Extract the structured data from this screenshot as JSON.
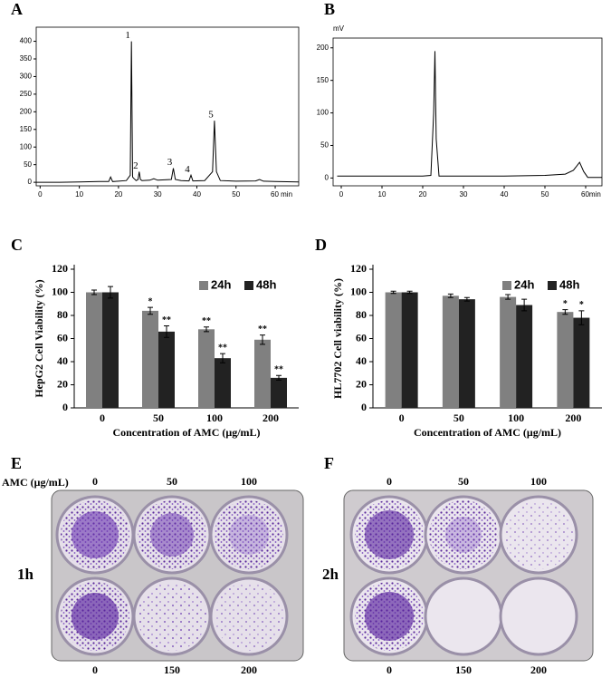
{
  "chart_data": [
    {
      "type": "line",
      "panel_label": "A",
      "color": "#000000",
      "x": [
        -1,
        5,
        10,
        15,
        17.5,
        18,
        18.5,
        20,
        22,
        23,
        23.3,
        23.6,
        24,
        24.5,
        25,
        25.3,
        25.6,
        26,
        28,
        29,
        30,
        33.5,
        34,
        34.5,
        36,
        38,
        38.5,
        39,
        42,
        44,
        44.5,
        45,
        46,
        50,
        55,
        56,
        57,
        60,
        66
      ],
      "values": [
        0,
        0,
        1,
        2,
        2,
        15,
        2,
        3,
        5,
        20,
        400,
        15,
        10,
        5,
        8,
        30,
        8,
        5,
        6,
        10,
        6,
        8,
        40,
        8,
        5,
        4,
        20,
        4,
        5,
        30,
        175,
        30,
        5,
        3,
        4,
        8,
        3,
        2,
        1
      ],
      "point_labels": [
        null,
        null,
        null,
        null,
        null,
        null,
        null,
        null,
        null,
        null,
        "1",
        null,
        null,
        null,
        null,
        "2",
        null,
        null,
        null,
        null,
        null,
        null,
        "3",
        null,
        null,
        null,
        "4",
        null,
        null,
        null,
        "5",
        null,
        null,
        null,
        null,
        null,
        null,
        null,
        null
      ],
      "xlim": [
        -1,
        66
      ],
      "ylim": [
        -10,
        440
      ],
      "xticks": [
        0,
        10,
        20,
        30,
        40,
        50,
        {
          "value": 60,
          "label": "60 min"
        }
      ],
      "yticks": [
        0,
        50,
        100,
        150,
        200,
        250,
        300,
        350,
        400
      ]
    },
    {
      "type": "line",
      "panel_label": "B",
      "color": "#000000",
      "y_label": "mV",
      "x": [
        -1,
        3,
        5,
        10,
        15,
        20,
        22,
        22.7,
        23,
        23.3,
        24,
        25,
        30,
        40,
        50,
        55,
        57,
        58.5,
        59.5,
        60.5,
        64
      ],
      "values": [
        3,
        3,
        3,
        3,
        3,
        3,
        4,
        100,
        195,
        60,
        3,
        3,
        3,
        3,
        4,
        6,
        12,
        24,
        10,
        1,
        1
      ],
      "xlim": [
        -2,
        64
      ],
      "ylim": [
        -12,
        215
      ],
      "xticks": [
        0,
        10,
        20,
        30,
        40,
        50,
        {
          "value": 60,
          "label": "60min"
        }
      ],
      "yticks": [
        0,
        50,
        100,
        150,
        200
      ]
    },
    {
      "type": "bar",
      "panel_label": "C",
      "y_label": "HepG2 Cell Viability (%)",
      "x_label": "Concentration  of AMC (μg/mL)",
      "categories": [
        "0",
        "50",
        "100",
        "200"
      ],
      "legend": "upper right",
      "series": [
        {
          "name": "24h",
          "color": "#808080",
          "values": [
            100,
            84,
            68,
            59
          ],
          "errors": [
            2,
            3,
            2,
            4
          ],
          "point_labels": [
            null,
            "*",
            "**",
            "**"
          ]
        },
        {
          "name": "48h",
          "color": "#222222",
          "values": [
            100,
            66,
            43,
            26
          ],
          "errors": [
            5,
            5,
            4,
            2
          ],
          "point_labels": [
            null,
            "**",
            "**",
            "**"
          ]
        }
      ],
      "ylim": [
        0,
        120
      ],
      "yticks": [
        0,
        20,
        40,
        60,
        80,
        100,
        120
      ]
    },
    {
      "type": "bar",
      "panel_label": "D",
      "y_label": "HL7702 Cell viability (%)",
      "x_label": "Concentration of AMC  (μg/mL)",
      "categories": [
        "0",
        "50",
        "100",
        "200"
      ],
      "legend": "upper right",
      "series": [
        {
          "name": "24h",
          "color": "#808080",
          "values": [
            100,
            97,
            96,
            83
          ],
          "errors": [
            1,
            1.5,
            2,
            2
          ],
          "point_labels": [
            null,
            null,
            null,
            "*"
          ]
        },
        {
          "name": "48h",
          "color": "#222222",
          "values": [
            100,
            94,
            89,
            78
          ],
          "errors": [
            1,
            1.5,
            5,
            6
          ],
          "point_labels": [
            null,
            null,
            null,
            "*"
          ]
        }
      ],
      "ylim": [
        0,
        120
      ],
      "yticks": [
        0,
        20,
        40,
        60,
        80,
        100,
        120
      ]
    }
  ],
  "plates": [
    {
      "panel_label": "E",
      "unit_label": "AMC  (μg/mL)",
      "top_labels": [
        "0",
        "50",
        "100"
      ],
      "row_label": "1h",
      "bottom_labels": [
        "0",
        "150",
        "200"
      ]
    },
    {
      "panel_label": "F",
      "top_labels": [
        "0",
        "50",
        "100"
      ],
      "row_label": "2h",
      "bottom_labels": [
        "0",
        "150",
        "200"
      ]
    }
  ]
}
